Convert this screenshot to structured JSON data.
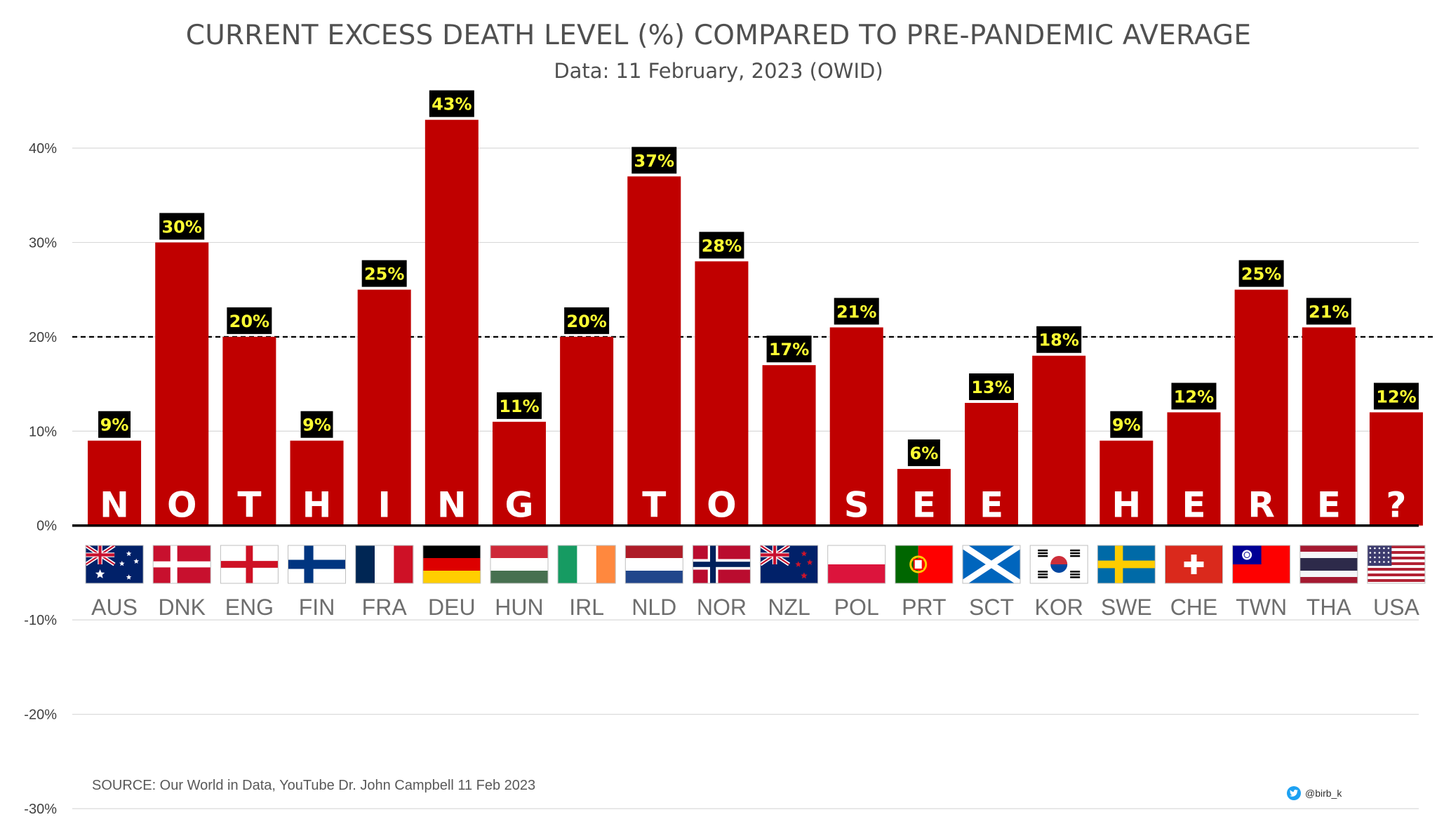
{
  "chart_data": {
    "type": "bar",
    "title": "CURRENT EXCESS DEATH LEVEL (%) COMPARED TO PRE-PANDEMIC AVERAGE",
    "subtitle": "Data: 11 February, 2023 (OWID)",
    "xlabel": "",
    "ylabel": "",
    "ylim": [
      -30,
      40
    ],
    "yticks": [
      "40%",
      "30%",
      "20%",
      "10%",
      "0%",
      "-10%",
      "-20%",
      "-30%"
    ],
    "ytick_values": [
      40,
      30,
      20,
      10,
      0,
      -10,
      -20,
      -30
    ],
    "grid": true,
    "reference_line": 20,
    "categories": [
      "AUS",
      "DNK",
      "ENG",
      "FIN",
      "FRA",
      "DEU",
      "HUN",
      "IRL",
      "NLD",
      "NOR",
      "NZL",
      "POL",
      "PRT",
      "SCT",
      "KOR",
      "SWE",
      "CHE",
      "TWN",
      "THA",
      "USA"
    ],
    "values": [
      9,
      30,
      20,
      9,
      25,
      43,
      11,
      20,
      37,
      28,
      17,
      21,
      6,
      13,
      18,
      9,
      12,
      25,
      21,
      12
    ],
    "data_labels": [
      "9%",
      "30%",
      "20%",
      "9%",
      "25%",
      "43%",
      "11%",
      "20%",
      "37%",
      "28%",
      "17%",
      "21%",
      "6%",
      "13%",
      "18%",
      "9%",
      "12%",
      "25%",
      "21%",
      "12%"
    ],
    "bar_letters": [
      "N",
      "O",
      "T",
      "H",
      "I",
      "N",
      "G",
      "",
      "T",
      "O",
      "",
      "S",
      "E",
      "E",
      "",
      "H",
      "E",
      "R",
      "E",
      "?"
    ],
    "bar_color": "#c00000",
    "label_bg_color": "#000000",
    "label_text_color": "#ffff33"
  },
  "flags": [
    "australia-flag",
    "denmark-flag",
    "england-flag",
    "finland-flag",
    "france-flag",
    "germany-flag",
    "hungary-flag",
    "ireland-flag",
    "netherlands-flag",
    "norway-flag",
    "new-zealand-flag",
    "poland-flag",
    "portugal-flag",
    "scotland-flag",
    "south-korea-flag",
    "sweden-flag",
    "switzerland-flag",
    "taiwan-flag",
    "thailand-flag",
    "usa-flag"
  ],
  "footer": {
    "source": "SOURCE: Our World in Data, YouTube Dr. John Campbell 11 Feb 2023",
    "credit": "@birb_k",
    "credit_icon": "twitter-bird-icon"
  }
}
